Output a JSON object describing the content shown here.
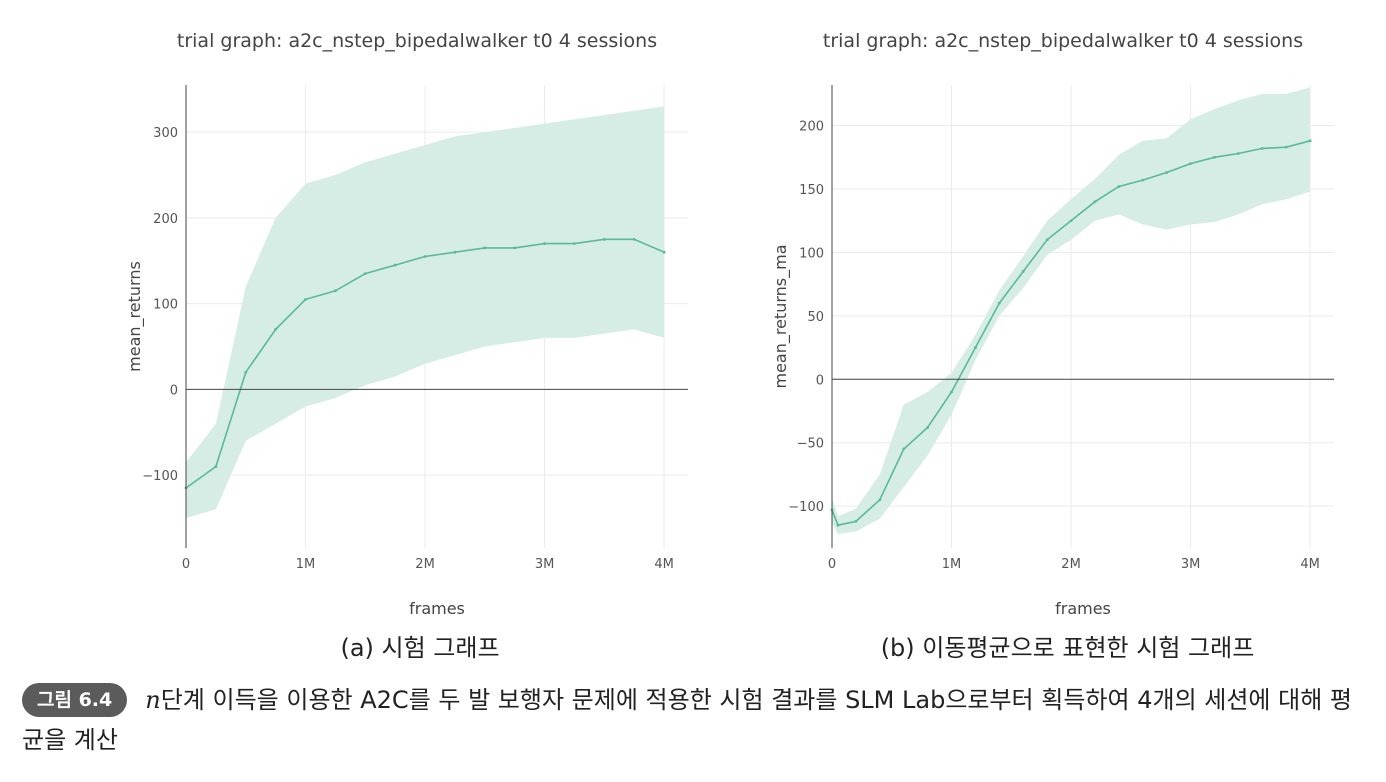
{
  "chart_data": [
    {
      "type": "line",
      "title": "trial graph: a2c_nstep_bipedalwalker t0 4 sessions",
      "xlabel": "frames",
      "ylabel": "mean_returns",
      "xlim": [
        0,
        4200000
      ],
      "ylim": [
        -185,
        355
      ],
      "x_ticks": [
        0,
        1000000,
        2000000,
        3000000,
        4000000
      ],
      "x_tick_labels": [
        "0",
        "1M",
        "2M",
        "3M",
        "4M"
      ],
      "y_ticks": [
        -100,
        0,
        100,
        200,
        300
      ],
      "y_tick_labels": [
        "−100",
        "0",
        "100",
        "200",
        "300"
      ],
      "grid": true,
      "zero_line": true,
      "series": [
        {
          "color": "#5ab99a",
          "band_color": "#d5ede4",
          "x": [
            0,
            250000,
            500000,
            750000,
            1000000,
            1250000,
            1500000,
            1750000,
            2000000,
            2250000,
            2500000,
            2750000,
            3000000,
            3250000,
            3500000,
            3750000,
            4000000
          ],
          "y": [
            -115,
            -90,
            20,
            70,
            105,
            115,
            135,
            145,
            155,
            160,
            165,
            165,
            170,
            170,
            175,
            175,
            160
          ],
          "y_lower": [
            -150,
            -140,
            -60,
            -40,
            -20,
            -10,
            5,
            15,
            30,
            40,
            50,
            55,
            60,
            60,
            65,
            70,
            60
          ],
          "y_upper": [
            -85,
            -40,
            120,
            200,
            240,
            250,
            265,
            275,
            285,
            295,
            300,
            305,
            310,
            315,
            320,
            325,
            330
          ]
        }
      ]
    },
    {
      "type": "line",
      "title": "trial graph: a2c_nstep_bipedalwalker t0 4 sessions",
      "xlabel": "frames",
      "ylabel": "mean_returns_ma",
      "xlim": [
        0,
        4200000
      ],
      "ylim": [
        -133,
        232
      ],
      "x_ticks": [
        0,
        1000000,
        2000000,
        3000000,
        4000000
      ],
      "x_tick_labels": [
        "0",
        "1M",
        "2M",
        "3M",
        "4M"
      ],
      "y_ticks": [
        -100,
        -50,
        0,
        50,
        100,
        150,
        200
      ],
      "y_tick_labels": [
        "−100",
        "−50",
        "0",
        "50",
        "100",
        "150",
        "200"
      ],
      "grid": true,
      "zero_line": true,
      "series": [
        {
          "color": "#5ab99a",
          "band_color": "#d5ede4",
          "x": [
            0,
            50000,
            200000,
            400000,
            600000,
            800000,
            1000000,
            1200000,
            1400000,
            1600000,
            1800000,
            2000000,
            2200000,
            2400000,
            2600000,
            2800000,
            3000000,
            3200000,
            3400000,
            3600000,
            3800000,
            4000000
          ],
          "y": [
            -103,
            -115,
            -112,
            -95,
            -55,
            -38,
            -10,
            25,
            60,
            85,
            110,
            125,
            140,
            152,
            157,
            163,
            170,
            175,
            178,
            182,
            183,
            188
          ],
          "y_lower": [
            -113,
            -122,
            -120,
            -110,
            -85,
            -60,
            -28,
            15,
            50,
            72,
            98,
            110,
            125,
            130,
            122,
            118,
            122,
            124,
            130,
            138,
            142,
            148
          ],
          "y_upper": [
            -93,
            -108,
            -102,
            -75,
            -20,
            -10,
            5,
            35,
            70,
            97,
            125,
            142,
            158,
            177,
            188,
            190,
            205,
            213,
            220,
            225,
            225,
            230
          ]
        }
      ]
    }
  ],
  "subcaptions": {
    "a": "(a) 시험 그래프",
    "b": "(b) 이동평균으로 표현한 시험 그래프"
  },
  "figure_caption": {
    "badge": "그림 6.4",
    "n": "n",
    "text": "단계 이득을 이용한 A2C를 두 발 보행자 문제에 적용한 시험 결과를 SLM Lab으로부터 획득하여 4개의 세션에 대해 평균을 계산"
  }
}
